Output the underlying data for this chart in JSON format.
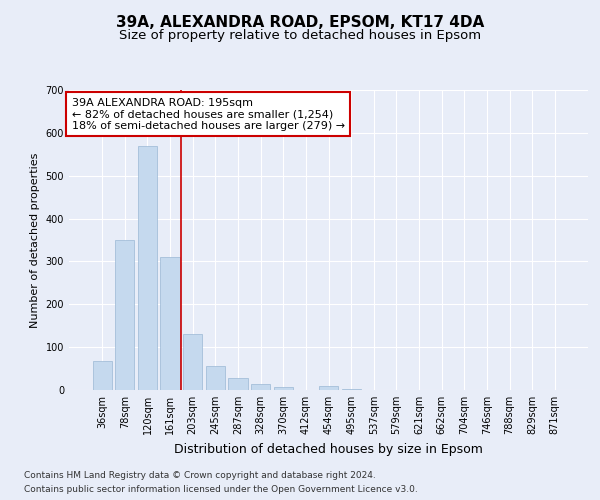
{
  "title1": "39A, ALEXANDRA ROAD, EPSOM, KT17 4DA",
  "title2": "Size of property relative to detached houses in Epsom",
  "xlabel": "Distribution of detached houses by size in Epsom",
  "ylabel": "Number of detached properties",
  "bar_labels": [
    "36sqm",
    "78sqm",
    "120sqm",
    "161sqm",
    "203sqm",
    "245sqm",
    "287sqm",
    "328sqm",
    "370sqm",
    "412sqm",
    "454sqm",
    "495sqm",
    "537sqm",
    "579sqm",
    "621sqm",
    "662sqm",
    "704sqm",
    "746sqm",
    "788sqm",
    "829sqm",
    "871sqm"
  ],
  "bar_values": [
    67,
    350,
    570,
    310,
    130,
    57,
    27,
    15,
    7,
    0,
    10,
    3,
    0,
    0,
    0,
    0,
    0,
    0,
    0,
    0,
    0
  ],
  "bar_color": "#c5d9ee",
  "bar_edge_color": "#9ab8d4",
  "vline_x": 3.5,
  "vline_color": "#cc0000",
  "annotation_line1": "39A ALEXANDRA ROAD: 195sqm",
  "annotation_line2": "← 82% of detached houses are smaller (1,254)",
  "annotation_line3": "18% of semi-detached houses are larger (279) →",
  "annotation_box_color": "#ffffff",
  "annotation_box_edge": "#cc0000",
  "ylim": [
    0,
    700
  ],
  "yticks": [
    0,
    100,
    200,
    300,
    400,
    500,
    600,
    700
  ],
  "bg_color": "#e8edf8",
  "plot_bg": "#e8edf8",
  "footer1": "Contains HM Land Registry data © Crown copyright and database right 2024.",
  "footer2": "Contains public sector information licensed under the Open Government Licence v3.0.",
  "grid_color": "#ffffff",
  "title1_fontsize": 11,
  "title2_fontsize": 9.5,
  "xlabel_fontsize": 9,
  "ylabel_fontsize": 8,
  "tick_fontsize": 7,
  "annotation_fontsize": 8,
  "footer_fontsize": 6.5
}
